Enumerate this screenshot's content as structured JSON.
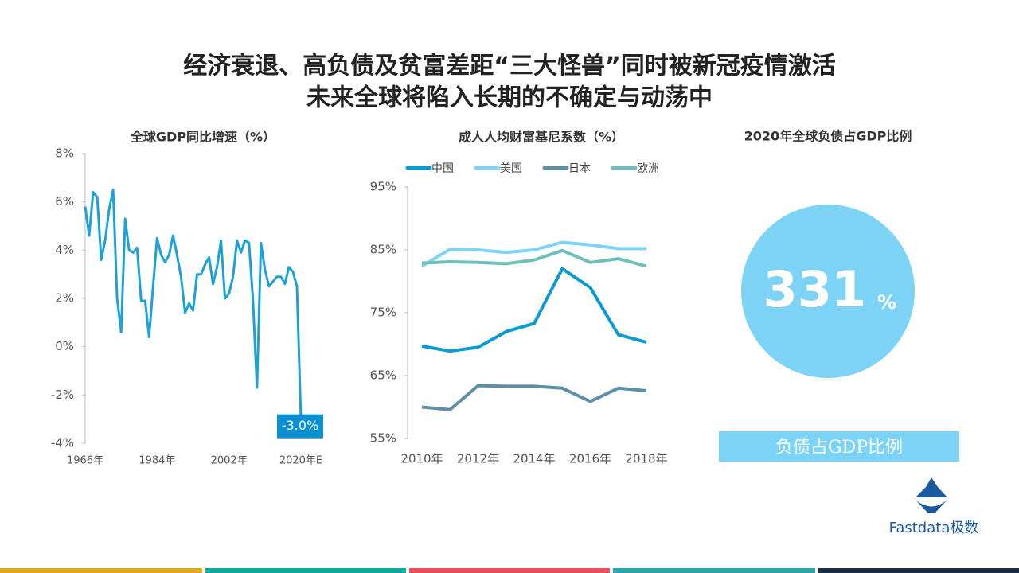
{
  "header": {
    "title_lines": [
      "经济衰退、高负债及贫富差距“三大怪兽”同时被新冠疫情激活",
      "未来全球将陷入长期的不确定与动荡中"
    ]
  },
  "chart_data": [
    {
      "type": "line",
      "title": "全球GDP同比增速（%）",
      "categories": [
        "1966年",
        null,
        null,
        null,
        null,
        null,
        null,
        null,
        null,
        null,
        null,
        null,
        null,
        null,
        null,
        null,
        null,
        null,
        "1984年",
        null,
        null,
        null,
        null,
        null,
        null,
        null,
        null,
        null,
        null,
        null,
        null,
        null,
        null,
        null,
        null,
        null,
        "2002年",
        null,
        null,
        null,
        null,
        null,
        null,
        null,
        null,
        null,
        null,
        null,
        null,
        null,
        null,
        null,
        null,
        null,
        "2020年E"
      ],
      "series": [
        {
          "name": null,
          "color": "#1ea1d9",
          "values": [
            5.8,
            4.6,
            6.4,
            6.2,
            3.6,
            4.4,
            5.7,
            6.5,
            2.0,
            0.6,
            5.3,
            4.0,
            3.9,
            4.1,
            1.9,
            1.9,
            0.4,
            2.5,
            4.5,
            3.8,
            3.5,
            3.8,
            4.6,
            3.8,
            2.9,
            1.4,
            1.8,
            1.5,
            3.0,
            3.0,
            3.4,
            3.7,
            2.6,
            3.3,
            4.4,
            2.0,
            2.2,
            2.9,
            4.4,
            3.9,
            4.4,
            4.3,
            1.9,
            -1.7,
            4.3,
            3.2,
            2.5,
            2.7,
            2.9,
            2.9,
            2.6,
            3.3,
            3.1,
            2.5,
            -3.0
          ],
          "value_labels": [
            null,
            null,
            null,
            null,
            null,
            null,
            null,
            null,
            null,
            null,
            null,
            null,
            null,
            null,
            null,
            null,
            null,
            null,
            null,
            null,
            null,
            null,
            null,
            null,
            null,
            null,
            null,
            null,
            null,
            null,
            null,
            null,
            null,
            null,
            null,
            null,
            null,
            null,
            null,
            null,
            null,
            null,
            null,
            null,
            null,
            null,
            null,
            null,
            null,
            null,
            null,
            null,
            null,
            null,
            "-3.0%"
          ]
        }
      ],
      "ylim": [
        -4,
        8
      ],
      "yticks": [
        {
          "value": -4,
          "label": "-4%"
        },
        {
          "value": -2,
          "label": "-2%"
        },
        {
          "value": 0,
          "label": "0%"
        },
        {
          "value": 2,
          "label": "2%"
        },
        {
          "value": 4,
          "label": "4%"
        },
        {
          "value": 6,
          "label": "6%"
        },
        {
          "value": 8,
          "label": "8%"
        }
      ],
      "legend": false
    },
    {
      "type": "line",
      "title": "成人人均财富基尼系数（%）",
      "categories": [
        "2010年",
        null,
        "2012年",
        null,
        "2014年",
        null,
        "2016年",
        null,
        "2018年"
      ],
      "series": [
        {
          "name": "中国",
          "color": "#0a9ad6",
          "values": [
            69.7,
            68.9,
            69.5,
            72.0,
            73.3,
            82.0,
            79.0,
            71.5,
            70.3
          ]
        },
        {
          "name": "美国",
          "color": "#7fd3f5",
          "values": [
            82.4,
            85.1,
            85.0,
            84.6,
            85.0,
            86.2,
            85.8,
            85.2,
            85.2
          ]
        },
        {
          "name": "日本",
          "color": "#5f8fa6",
          "values": [
            60.0,
            59.6,
            63.4,
            63.3,
            63.3,
            63.0,
            60.9,
            63.0,
            62.6
          ]
        },
        {
          "name": "欧洲",
          "color": "#6fbfbb",
          "values": [
            82.9,
            83.1,
            83.0,
            82.8,
            83.4,
            84.9,
            83.0,
            83.6,
            82.4
          ]
        }
      ],
      "ylim": [
        55,
        95
      ],
      "yticks": [
        {
          "value": 55,
          "label": "55%"
        },
        {
          "value": 65,
          "label": "65%"
        },
        {
          "value": 75,
          "label": "75%"
        },
        {
          "value": 85,
          "label": "85%"
        },
        {
          "value": 95,
          "label": "95%"
        }
      ],
      "legend": "top"
    }
  ],
  "stat": {
    "title": "2020年全球负债占GDP比例",
    "value": 331,
    "unit": "%",
    "caption": "负债占GDP比例",
    "color": "#7dd3f5"
  },
  "logo": {
    "text": "Fastdata极数"
  }
}
